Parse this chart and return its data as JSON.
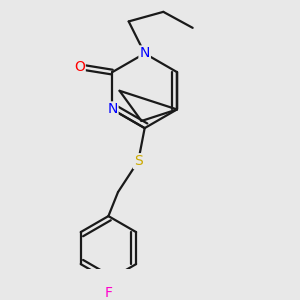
{
  "background_color": "#e8e8e8",
  "bond_color": "#1a1a1a",
  "atom_colors": {
    "N": "#0000ff",
    "O": "#ff0000",
    "S": "#ccaa00",
    "F": "#ff00cc",
    "C": "#1a1a1a"
  },
  "figsize": [
    3.0,
    3.0
  ],
  "dpi": 100,
  "xlim": [
    -1.6,
    2.2
  ],
  "ylim": [
    -3.2,
    1.8
  ]
}
